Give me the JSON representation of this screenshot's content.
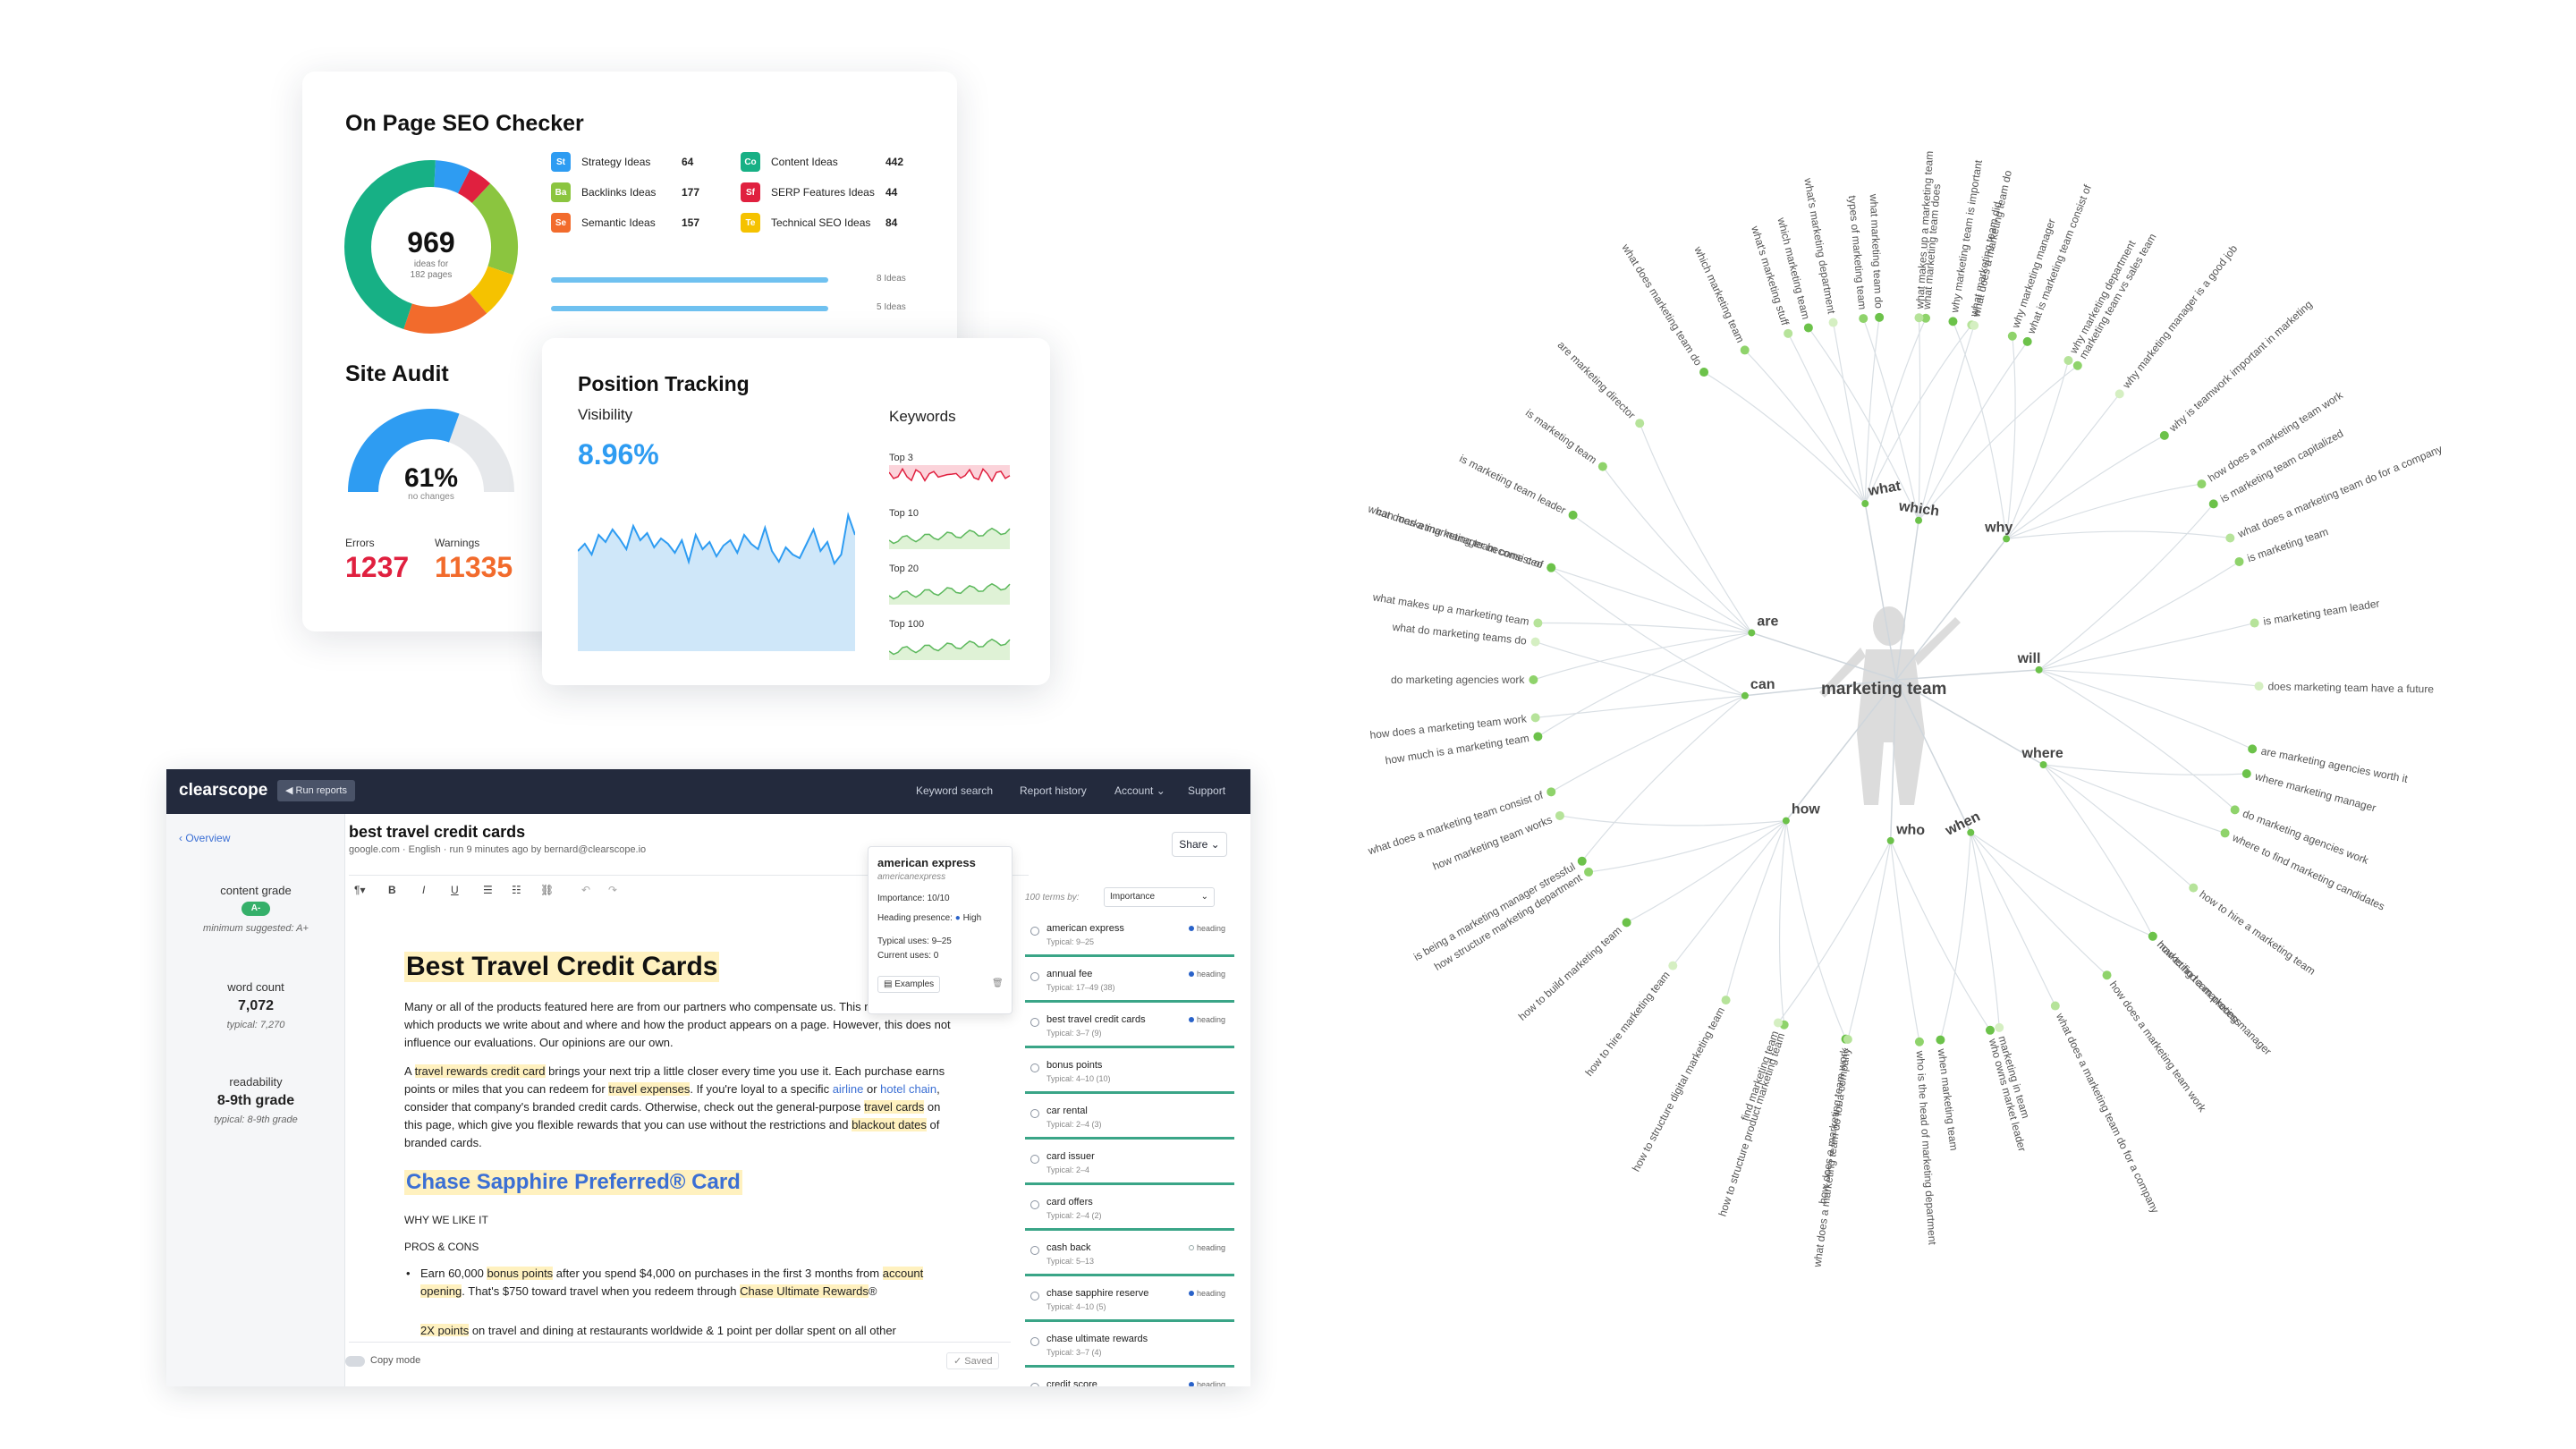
{
  "seo": {
    "title": "On Page SEO Checker",
    "donut_total": "969",
    "donut_sub1": "ideas for",
    "donut_sub2": "182 pages",
    "ideas": [
      {
        "abbr": "St",
        "label": "Strategy Ideas",
        "value": "64",
        "color": "#2e9cf2"
      },
      {
        "abbr": "Ba",
        "label": "Backlinks Ideas",
        "value": "177",
        "color": "#8bc53f"
      },
      {
        "abbr": "Se",
        "label": "Semantic Ideas",
        "value": "157",
        "color": "#f26b2c"
      },
      {
        "abbr": "Co",
        "label": "Content Ideas",
        "value": "442",
        "color": "#17b085"
      },
      {
        "abbr": "Sf",
        "label": "SERP Features Ideas",
        "value": "44",
        "color": "#e0203f"
      },
      {
        "abbr": "Te",
        "label": "Technical SEO Ideas",
        "value": "84",
        "color": "#f5c200"
      }
    ],
    "bar1_label": "8 Ideas",
    "bar2_label": "5 Ideas",
    "audit_title": "Site Audit",
    "audit_pct": "61%",
    "audit_sub": "no changes",
    "audit_fraction": 0.61,
    "errors_label": "Errors",
    "errors_value": "1237",
    "warnings_label": "Warnings",
    "warnings_value": "11335"
  },
  "tracking": {
    "title": "Position Tracking",
    "visibility_label": "Visibility",
    "visibility_value": "8.96%",
    "keywords_label": "Keywords",
    "kw": [
      "Top 3",
      "Top 10",
      "Top 20",
      "Top 100"
    ]
  },
  "clearscope": {
    "logo": "clearscope",
    "run_reports": "Run reports",
    "nav": [
      "Keyword search",
      "Report history",
      "Account",
      "Support"
    ],
    "overview": "Overview",
    "content_grade_label": "content grade",
    "content_grade": "A-",
    "min_suggested": "minimum suggested: A+",
    "word_count_label": "word count",
    "word_count": "7,072",
    "word_typical": "typical: 7,270",
    "readability_label": "readability",
    "readability": "8-9th grade",
    "readability_typical": "typical: 8-9th grade",
    "copy_mode": "Copy mode",
    "saved": "Saved",
    "report_title": "best travel credit cards",
    "report_meta": "google.com · English · run 9 minutes ago by bernard@clearscope.io",
    "share": "Share",
    "doc_h1": "Best Travel Credit Cards",
    "p1": "Many or all of the products featured here are from our partners who compensate us. This may influence which products we write about and where and how the product appears on a page. However, this does not influence our evaluations. Our opinions are our own.",
    "p2_a": "A ",
    "p2_hl1": "travel rewards credit card",
    "p2_b": " brings your next trip a little closer every time you use it. Each purchase earns points or miles that you can redeem for ",
    "p2_hl2": "travel expenses",
    "p2_c": ". If you're loyal to a specific ",
    "p2_link1": "airline",
    "p2_d": " or ",
    "p2_link2": "hotel chain",
    "p2_e": ", consider that company's branded credit cards. Otherwise, check out the general-purpose ",
    "p2_hl3": "travel cards",
    "p2_f": " on this page, which give you flexible rewards that you can use without the restrictions and ",
    "p2_hl4": "blackout dates",
    "p2_g": " of branded cards.",
    "doc_h2": "Chase Sapphire Preferred® Card",
    "why": "WHY WE LIKE IT",
    "pros": "PROS & CONS",
    "li1_a": "Earn 60,000 ",
    "li1_hl1": "bonus points",
    "li1_b": " after you spend $4,000 on purchases in the first 3 months from ",
    "li1_hl2": "account opening",
    "li1_c": ". That's $750 toward travel when you redeem through ",
    "li1_hl3": "Chase Ultimate Rewards",
    "li1_d": "®",
    "li2_hl": "2X points",
    "li2_b": " on travel and dining at restaurants worldwide & 1 point per dollar spent on all other",
    "popup_title": "american express",
    "popup_sub": "americanexpress",
    "popup_importance": "Importance: 10/10",
    "popup_heading": "Heading presence:",
    "popup_high": "High",
    "popup_typical": "Typical uses: 9–25",
    "popup_current": "Current uses: 0",
    "popup_examples": "Examples",
    "terms_sort": "100 terms by:",
    "terms_select": "Importance",
    "terms": [
      {
        "name": "american express",
        "typical": "Typical: 9–25",
        "heading": "heading",
        "filled": true
      },
      {
        "name": "annual fee",
        "typical": "Typical: 17–49 (38)",
        "heading": "heading",
        "filled": true
      },
      {
        "name": "best travel credit cards",
        "typical": "Typical: 3–7 (9)",
        "heading": "heading",
        "filled": true
      },
      {
        "name": "bonus points",
        "typical": "Typical: 4–10 (10)",
        "heading": "",
        "filled": false
      },
      {
        "name": "car rental",
        "typical": "Typical: 2–4 (3)",
        "heading": "",
        "filled": false
      },
      {
        "name": "card issuer",
        "typical": "Typical: 2–4",
        "heading": "",
        "filled": false
      },
      {
        "name": "card offers",
        "typical": "Typical: 2–4 (2)",
        "heading": "",
        "filled": false
      },
      {
        "name": "cash back",
        "typical": "Typical: 5–13",
        "heading": "heading",
        "filled": false
      },
      {
        "name": "chase sapphire reserve",
        "typical": "Typical: 4–10 (5)",
        "heading": "heading",
        "filled": true
      },
      {
        "name": "chase ultimate rewards",
        "typical": "Typical: 3–7 (4)",
        "heading": "",
        "filled": false
      },
      {
        "name": "credit score",
        "typical": "",
        "heading": "heading",
        "filled": true
      }
    ]
  },
  "mindmap": {
    "center": "marketing team",
    "branches": [
      {
        "label": "what",
        "leaves": [
          "what does marketing team do",
          "which marketing team",
          "what's marketing stuff",
          "what's marketing department",
          "what marketing team do",
          "what marketing team does",
          "what marketing team did"
        ]
      },
      {
        "label": "which",
        "leaves": [
          "which marketing team",
          "types of marketing team",
          "what makes up a marketing team",
          "what does a marketing team do",
          "what is marketing team consist of",
          "marketing team vs sales team"
        ]
      },
      {
        "label": "why",
        "leaves": [
          "why marketing team is important",
          "why marketing manager",
          "why marketing department",
          "why marketing manager is a good job",
          "why is teamwork important in marketing",
          "how does a marketing team work",
          "what does a marketing team do for a company"
        ]
      },
      {
        "label": "are",
        "leaves": [
          "how much is a marketing team",
          "do marketing agencies work",
          "what makes up a marketing team",
          "what does a marketing team consist of",
          "is marketing team leader",
          "is marketing team",
          "are marketing director"
        ]
      },
      {
        "label": "will",
        "leaves": [
          "is marketing team capitalized",
          "is marketing team",
          "is marketing team leader",
          "does marketing team have a future",
          "are marketing agencies worth it",
          "do marketing agencies work"
        ]
      },
      {
        "label": "can",
        "leaves": [
          "is being a marketing manager stressful",
          "what does a marketing team consist of",
          "how does a marketing team work",
          "what do marketing teams do",
          "can marketing manager become ceo"
        ]
      },
      {
        "label": "where",
        "leaves": [
          "where marketing manager",
          "where to find marketing candidates",
          "how to hire a marketing team",
          "how to find a marketing manager"
        ]
      },
      {
        "label": "how",
        "leaves": [
          "how does a marketing team work",
          "how to structure product marketing team",
          "how to structure digital marketing team",
          "how to hire marketing team",
          "how to build marketing team",
          "how structure marketing department",
          "how marketing team works"
        ]
      },
      {
        "label": "who",
        "leaves": [
          "who owns market leader",
          "who is the head of marketing department",
          "what does a marketing team do for a company",
          "find marketing team"
        ]
      },
      {
        "label": "when",
        "leaves": [
          "marketing team process",
          "how does a marketing team work",
          "what does a marketing team do for a company",
          "marketing in team",
          "when marketing team"
        ]
      }
    ]
  }
}
